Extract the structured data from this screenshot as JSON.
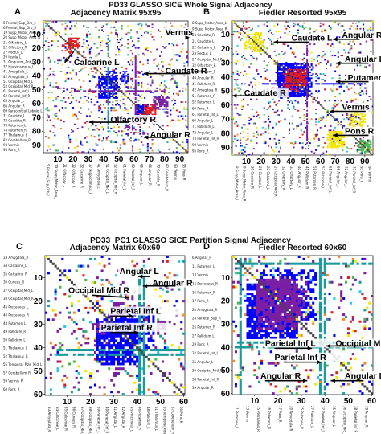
{
  "figure_title_top": "PD33 GLASSO SICE Whole Signal Adjacency",
  "figure_title_bottom": "PD33_PC1 GLASSO SICE Partition Signal Adjacency",
  "chart_data": [
    {
      "type": "heatmap",
      "panel": "A",
      "title": "Adjacency Matrix 95x95",
      "size": 95,
      "xticks": [
        10,
        20,
        30,
        40,
        50,
        60,
        70,
        80,
        90
      ],
      "yticks": [
        10,
        20,
        30,
        40,
        50,
        60,
        70,
        80,
        90
      ],
      "row_labels": [
        "5 Frontal_Sup_Orb_L",
        "6 Frontal_Sup_Orb_R",
        "19 Supp_Motor_Area_L",
        "20 Supp_Motor_Area_R",
        "21 Olfactory_L",
        "22 Olfactory_R",
        "27 Rectus_L",
        "29 Insula_L",
        "31 Cingulum_Ant_L",
        "37 Hippocampus_L",
        "41 Amygdala_L",
        "42 Amygdala_R",
        "51 Occipital_Mid_L",
        "52 Occipital_Mid_R",
        "61 Parietal_Inf_L",
        "62 Parietal_Inf_R",
        "65 Angular_L",
        "66 Angular_R",
        "69 Paracentral_Lobule_L",
        "71 Caudate_L",
        "72 Caudate_R",
        "73 Putamen_L",
        "74 Putamen_R",
        "77 Thalamus_L",
        "82 Cerebellum_R",
        "93 Vermis",
        "95 Pons_R"
      ],
      "col_labels": [
        "5 Frontal_Sup_Orb_L",
        "19 Supp_Motor_Area_L",
        "21 Olfactory_L",
        "22 Olfactory_R",
        "32 Calcarine_R",
        "37 Hippocampus_L",
        "41 Amygdala_L",
        "51 Occipital_Mid_L",
        "52 Occipital_Mid_R",
        "61 Parietal_Inf_L",
        "62 Parietal_Inf_R",
        "65 Angular_L",
        "66 Angular_R",
        "72 Caudate_R",
        "82 Cerebellum_R",
        "93 Vermis",
        "95 Pons_R"
      ],
      "annotations": [
        "Calcarine L",
        "Vermis",
        "Caudate R",
        "Olfactory R",
        "Angular R"
      ]
    },
    {
      "type": "heatmap",
      "panel": "B",
      "title": "Fiedler Resorted 95x95",
      "size": 95,
      "xticks": [
        10,
        20,
        30,
        40,
        50,
        60,
        70,
        80,
        90
      ],
      "yticks": [
        10,
        20,
        30,
        40,
        50,
        60,
        70,
        80,
        90
      ],
      "row_labels": [
        "8 Supp_Motor_Area_L",
        "9 Supp_Motor_Area_R",
        "20 Caudate_R",
        "21 Caudate_L",
        "22 Calcarine_L",
        "23 Rectus_L",
        "27 Occipital_Mid_R",
        "32 Olfactory_R",
        "33 Olfactory_L",
        "40 Angular_R",
        "41 Pallidum_R",
        "42 Amygdala_R",
        "51 Putamen_R",
        "52 Putamen_L",
        "60 Pons_R",
        "61 Parietal_Inf_L",
        "66 Angular_L",
        "71 Pallidum_L",
        "72 Angular_L",
        "73 Parietal_Inf_R",
        "90 Vermis",
        "95 Pons_R"
      ],
      "col_labels": [
        "8 Supp_Motor_Area_L",
        "9 Supp_Motor_Area_R",
        "20 Caudate_R",
        "21 Caudate_L",
        "22 Calcarine_L",
        "27 Occipital_Mid_R",
        "32 Olfactory_R",
        "33 Olfactory_L",
        "40 Angular_R",
        "41 Pallidum_R",
        "51 Putamen_R",
        "52 Putamen_L",
        "61 Parietal_Inf_L",
        "66 Angular_L",
        "72 Angular_L",
        "73 Parietal_Inf_R",
        "93 Pons_R",
        "94 Vermis"
      ],
      "annotations": [
        "Caudate L",
        "Angular R",
        "Angular L",
        "Putamen R",
        "Caudate R",
        "Vermis",
        "Pons R"
      ]
    },
    {
      "type": "heatmap",
      "panel": "C",
      "title": "Adjacency Matrix 60x60",
      "size": 60,
      "xticks": [
        10,
        20,
        30,
        40,
        50,
        60
      ],
      "yticks": [
        10,
        20,
        30,
        40,
        50,
        60
      ],
      "row_labels": [
        "33 Amygdala_R",
        "34 Calcarine_L",
        "35 Calcarine_R",
        "36 Cuneus_R",
        "37 Occipital_Mid_L",
        "38 Occipital_Mid_R",
        "45 Precuneus_L",
        "46 Precuneus_R",
        "48 Putamen_L",
        "49 Pallidum_R",
        "50 Pallidum_L",
        "51 Thalamus_L",
        "52 Thalamus_R",
        "55 Temporal_Pole_Mid_L",
        "57 Cerebellum_R",
        "59 Vermis_R",
        "60 Pons_R"
      ],
      "col_labels": [
        "33 Amygdala_R",
        "34 Calcarine_L",
        "35 Calcarine_R",
        "36 Cuneus_R",
        "37 Occipital_Mid_L",
        "38 Occipital_Mid_R",
        "39 Parietal_Inf_L",
        "40 Parietal_Inf_R",
        "41 Angular_L",
        "42 Angular_R",
        "45 Precuneus_L",
        "46 Putamen_R",
        "48 Pallidum_L",
        "51 Thalamus_L",
        "55 Temporal_Pole_Mid_L",
        "57 Cerebellum_R",
        "60 Pons_R"
      ],
      "annotations": [
        "Angular L",
        "Occipital Mid R",
        "Angular R",
        "Parietal Inf L",
        "Parietal Inf R"
      ]
    },
    {
      "type": "heatmap",
      "panel": "D",
      "title": "Fiedler Resorted 60x60",
      "size": 60,
      "xticks": [
        10,
        20,
        30,
        40,
        50,
        60
      ],
      "yticks": [
        10,
        20,
        30,
        40,
        50,
        60
      ],
      "row_labels": [
        "6 Angular_R",
        "11 Putamen_L",
        "13 Vermis",
        "15 Precuneus_R",
        "16 Putamen_R",
        "17 Pons_R",
        "20 Amygdala_R",
        "24 Parietal_Sup_R",
        "25 Putamen_R",
        "27 Pallidum_L",
        "29 Pons_R",
        "32 Parietal_Inf_L",
        "35 Angular_L",
        "36 Occipital_Mid_R",
        "38 Parietal_Inf_R",
        "39 Angular_R"
      ],
      "col_labels": [
        "11 Putamen_L",
        "13 Vermis",
        "15 Precuneus_R",
        "16 Putamen_R",
        "17 Pons_R",
        "20 Amygdala_R",
        "25 Putamen_R",
        "27 Pallidum_L",
        "32 Parietal_Inf_L",
        "35 Angular_L",
        "36 Occipital_Mid_R",
        "38 Parietal_Inf_R",
        "39 Angular_R"
      ],
      "annotations": [
        "Parietal Inf L",
        "Occipital Mid R",
        "Parietal Inf R",
        "Angular R",
        "Angular L"
      ]
    }
  ]
}
